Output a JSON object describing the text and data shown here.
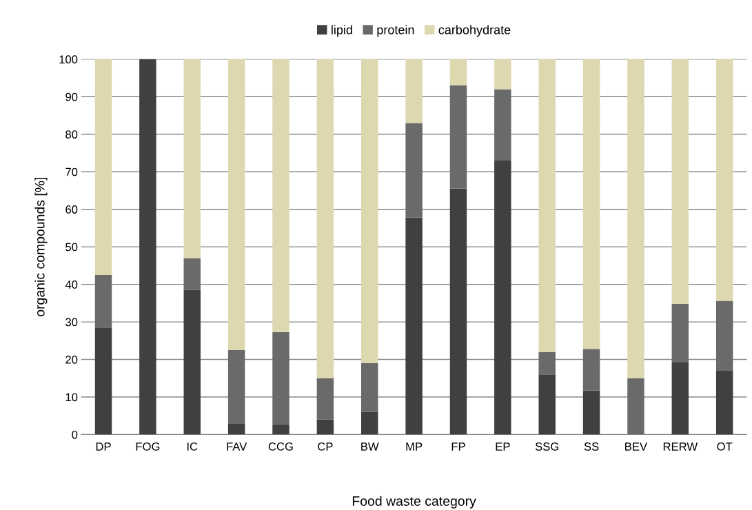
{
  "chart_data": {
    "type": "bar",
    "stacked": true,
    "xlabel": "Food waste category",
    "ylabel": "organic compounds [%]",
    "categories": [
      "DP",
      "FOG",
      "IC",
      "FAV",
      "CCG",
      "CP",
      "BW",
      "MP",
      "FP",
      "EP",
      "SSG",
      "SS",
      "BEV",
      "RERW",
      "OT"
    ],
    "series": [
      {
        "name": "lipid",
        "color": "#404040",
        "values": [
          28.5,
          100,
          38.5,
          3,
          2.7,
          4,
          6,
          57.8,
          65.5,
          73,
          16,
          11.7,
          0,
          19.2,
          17.1
        ]
      },
      {
        "name": "protein",
        "color": "#6a6a6a",
        "values": [
          14,
          0,
          8.5,
          19.5,
          24.6,
          11,
          13,
          25.2,
          27.5,
          19,
          6,
          11.1,
          15,
          15.6,
          18.5
        ]
      },
      {
        "name": "carbohydrate",
        "color": "#ddd8b0",
        "values": [
          57.5,
          0,
          53,
          77.5,
          72.7,
          85,
          81,
          17,
          7,
          8,
          78,
          77.2,
          85,
          65.2,
          64.4
        ]
      }
    ],
    "ylim": [
      0,
      100
    ],
    "yticks": [
      0,
      10,
      20,
      30,
      40,
      50,
      60,
      70,
      80,
      90,
      100
    ],
    "grid": "y",
    "legend": "top"
  }
}
